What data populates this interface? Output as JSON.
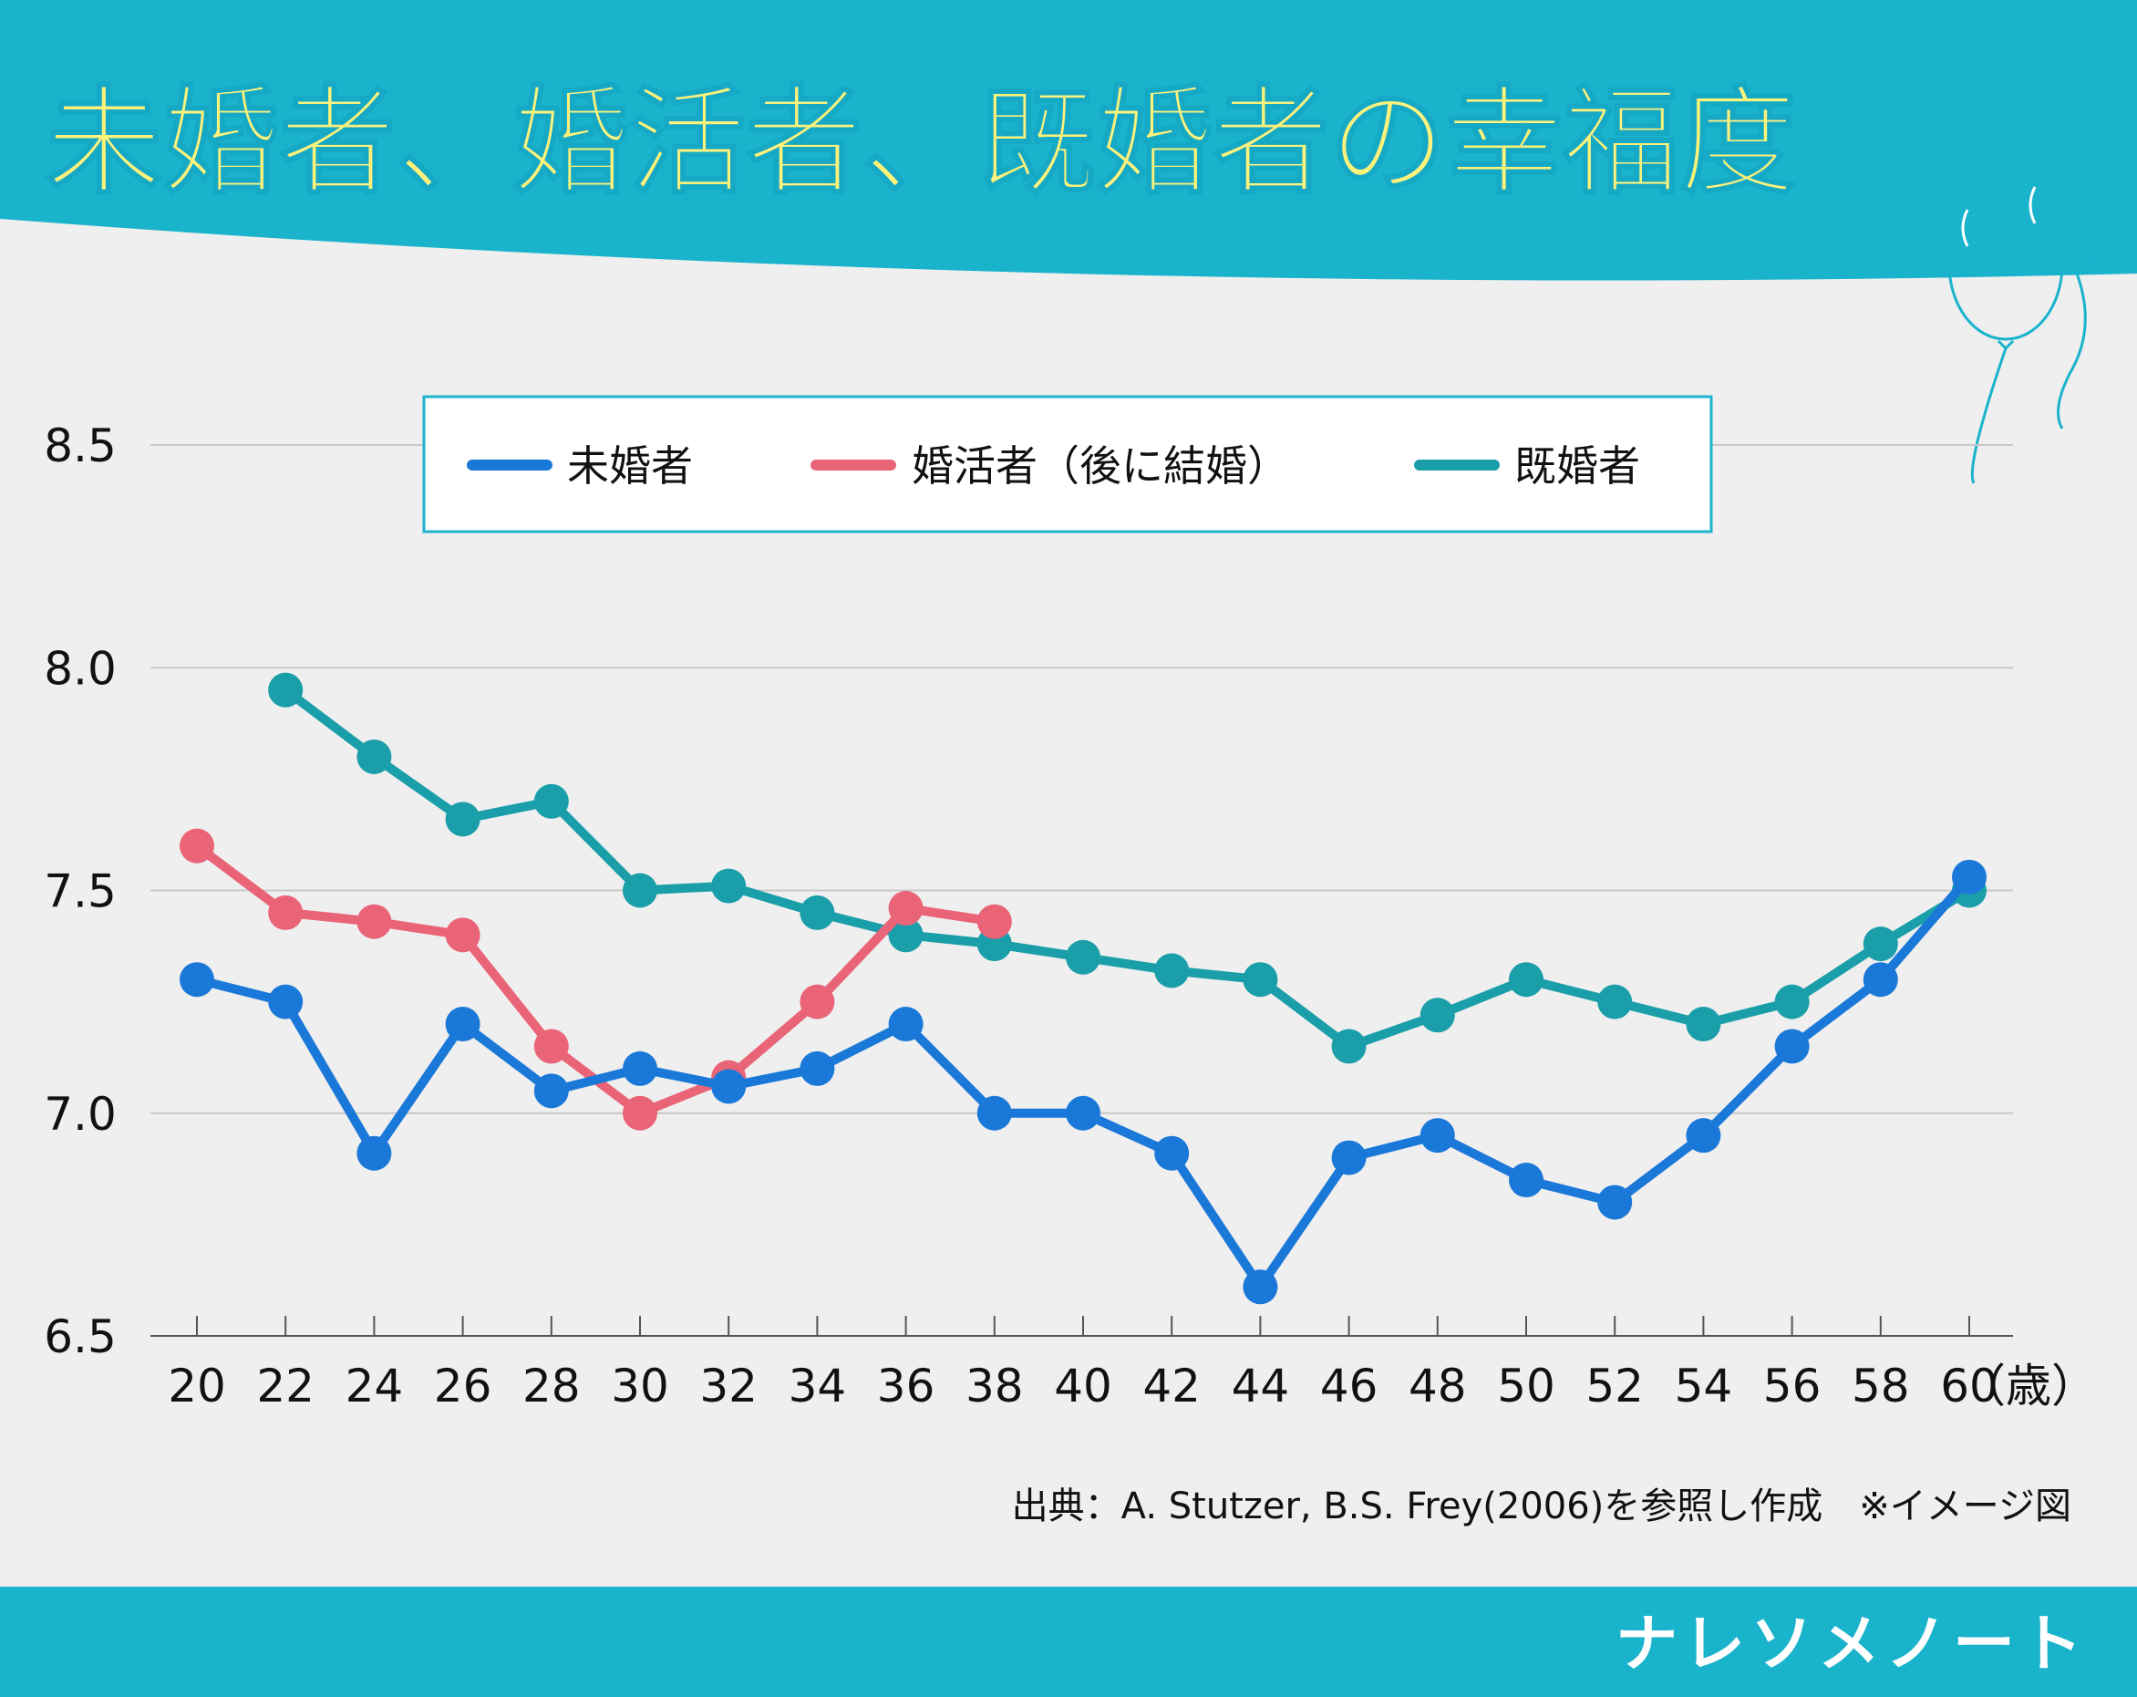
{
  "title": "未婚者、婚活者、既婚者の幸福度",
  "source_note": "出典：A. Stutzer, B.S. Frey(2006)を参照し作成　※イメージ図",
  "brand": "ナレソメノート",
  "colors": {
    "header": "#1ab3cc",
    "title_text": "#fff27a",
    "background": "#efefef",
    "unmarried": "#1a78d8",
    "seeking": "#ea6478",
    "married": "#1a9eaa",
    "grid": "#c8c8c8",
    "legend_border": "#20b3cc"
  },
  "decoration": "balloon-icon",
  "chart_data": {
    "type": "line",
    "title": "未婚者、婚活者、既婚者の幸福度",
    "xlabel": "（歳）",
    "ylabel": "",
    "x": [
      20,
      22,
      24,
      26,
      28,
      30,
      32,
      34,
      36,
      38,
      40,
      42,
      44,
      46,
      48,
      50,
      52,
      54,
      56,
      58,
      60
    ],
    "x_tick_labels": [
      "20",
      "22",
      "24",
      "26",
      "28",
      "30",
      "32",
      "34",
      "36",
      "38",
      "40",
      "42",
      "44",
      "46",
      "48",
      "50",
      "52",
      "54",
      "56",
      "58",
      "60"
    ],
    "x_unit_label": "（歳）",
    "ylim": [
      6.5,
      8.5
    ],
    "y_ticks": [
      6.5,
      7.0,
      7.5,
      8.0,
      8.5
    ],
    "y_tick_labels": [
      "6.5",
      "7.0",
      "7.5",
      "8.0",
      "8.5"
    ],
    "grid": "horizontal",
    "legend_position": "top-center",
    "series": [
      {
        "name": "未婚者",
        "key": "unmarried",
        "x": [
          20,
          22,
          24,
          26,
          28,
          30,
          32,
          34,
          36,
          38,
          40,
          42,
          44,
          46,
          48,
          50,
          52,
          54,
          56,
          58,
          60
        ],
        "values": [
          7.3,
          7.25,
          6.91,
          7.2,
          7.05,
          7.1,
          7.06,
          7.1,
          7.2,
          7.0,
          7.0,
          6.91,
          6.61,
          6.9,
          6.95,
          6.85,
          6.8,
          6.95,
          7.15,
          7.3,
          7.53
        ]
      },
      {
        "name": "婚活者（後に結婚）",
        "key": "seeking",
        "x": [
          20,
          22,
          24,
          26,
          28,
          30,
          32,
          34,
          36,
          38
        ],
        "values": [
          7.6,
          7.45,
          7.43,
          7.4,
          7.15,
          7.0,
          7.08,
          7.25,
          7.46,
          7.43
        ]
      },
      {
        "name": "既婚者",
        "key": "married",
        "x": [
          22,
          24,
          26,
          28,
          30,
          32,
          34,
          36,
          38,
          40,
          42,
          44,
          46,
          48,
          50,
          52,
          54,
          56,
          58,
          60
        ],
        "values": [
          7.95,
          7.8,
          7.66,
          7.7,
          7.5,
          7.51,
          7.45,
          7.4,
          7.38,
          7.35,
          7.32,
          7.3,
          7.15,
          7.22,
          7.3,
          7.25,
          7.2,
          7.25,
          7.38,
          7.5
        ]
      }
    ]
  }
}
